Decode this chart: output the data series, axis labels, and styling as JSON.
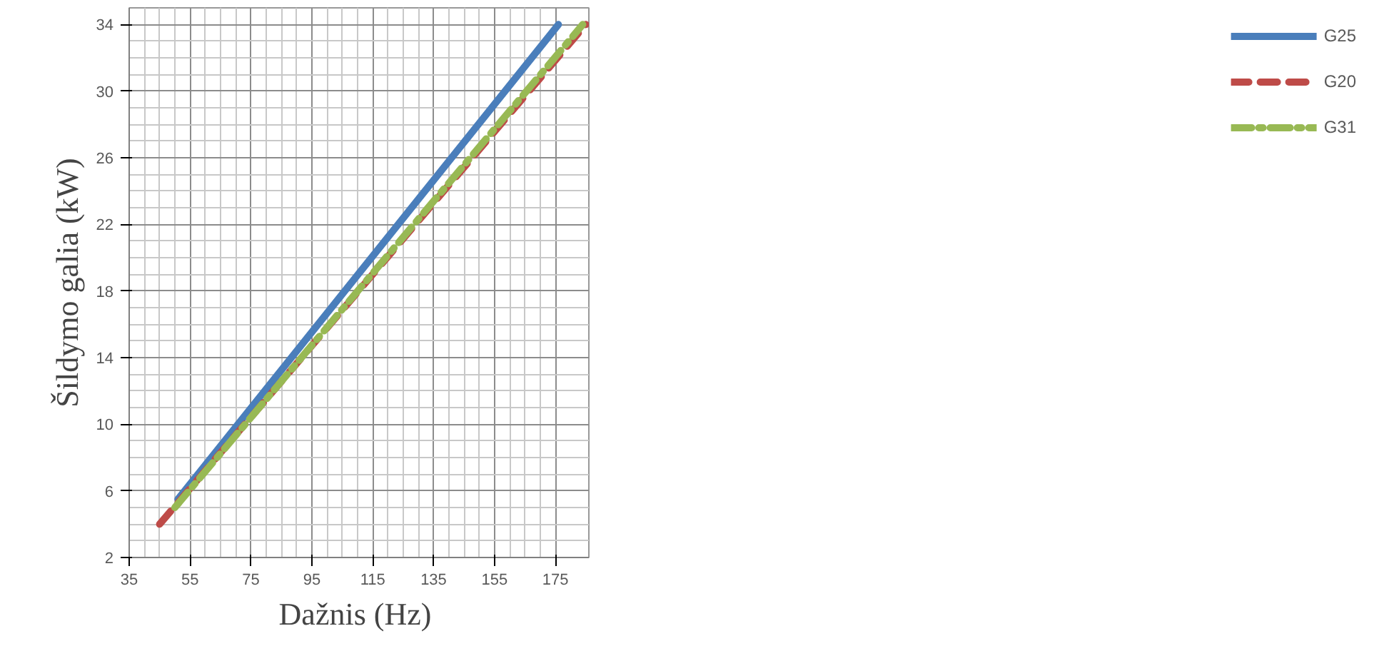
{
  "chart_data": {
    "type": "line",
    "xlabel": "Dažnis  (Hz)",
    "ylabel": "Šildymo galia (kW)",
    "xlim": [
      35,
      186
    ],
    "ylim": [
      2,
      35
    ],
    "xticks": [
      35,
      55,
      75,
      95,
      115,
      135,
      155,
      175
    ],
    "yticks": [
      2,
      6,
      10,
      14,
      18,
      22,
      26,
      30,
      34
    ],
    "grid": true,
    "legend": "right",
    "series": [
      {
        "name": "G25",
        "color": "#4a7ebb",
        "x": [
          51,
          176
        ],
        "values": [
          5.5,
          34
        ],
        "line_style": "solid"
      },
      {
        "name": "G20",
        "color": "#be4b48",
        "x": [
          45,
          185
        ],
        "values": [
          4,
          34
        ],
        "line_style": "dashed"
      },
      {
        "name": "G31",
        "color": "#98b954",
        "x": [
          50,
          184
        ],
        "values": [
          5,
          34
        ],
        "line_style": "dashdot"
      }
    ]
  }
}
